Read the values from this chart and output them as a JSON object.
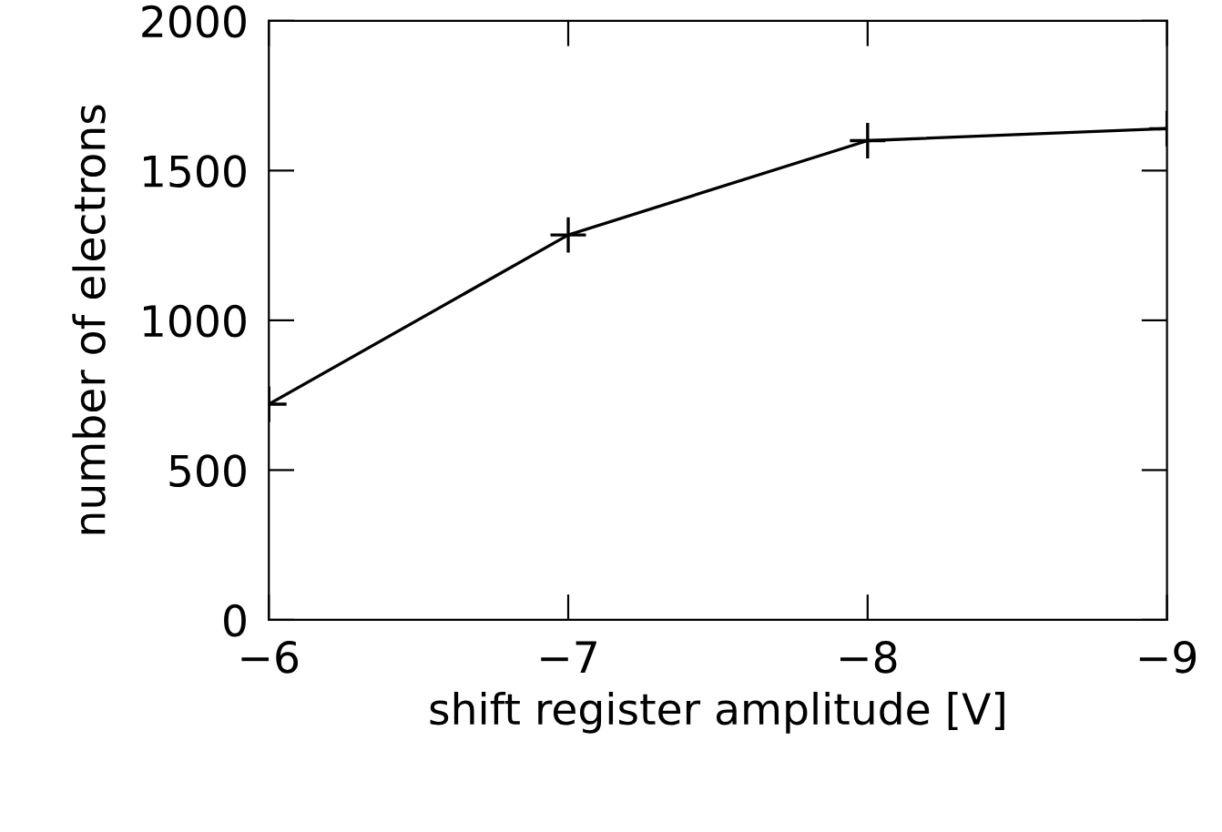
{
  "chart_data": {
    "type": "line",
    "xlabel": "shift register amplitude [V]",
    "ylabel": "number of electrons",
    "x": [
      -6,
      -7,
      -8,
      -9
    ],
    "series": [
      {
        "color": "#000000",
        "values": [
          720,
          1285,
          1600,
          1640
        ]
      }
    ],
    "xlim": [
      -6,
      -9
    ],
    "xticks": [
      {
        "value": -6,
        "label": "−6"
      },
      {
        "value": -7,
        "label": "−7"
      },
      {
        "value": -8,
        "label": "−8"
      },
      {
        "value": -9,
        "label": "−9"
      }
    ],
    "ylim": [
      0,
      2000
    ],
    "yticks": [
      0,
      500,
      1000,
      1500,
      2000
    ],
    "marker": "cross",
    "line_style": "solid",
    "grid": false,
    "legend": false
  }
}
